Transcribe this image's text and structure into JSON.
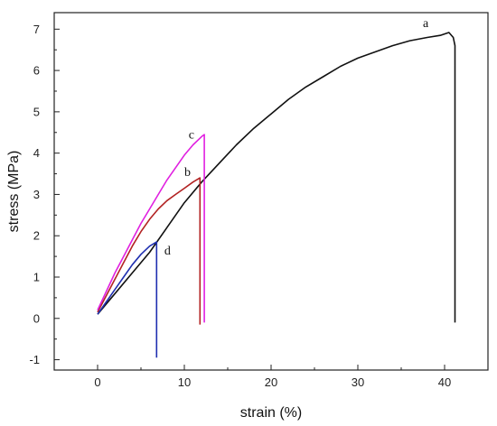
{
  "chart_data": {
    "type": "line",
    "title": "",
    "xlabel": "strain (%)",
    "ylabel": "stress (MPa)",
    "xlim": [
      -5,
      45
    ],
    "ylim": [
      -1.25,
      7.4
    ],
    "x_ticks": [
      0,
      10,
      20,
      30,
      40
    ],
    "y_ticks": [
      -1,
      0,
      1,
      2,
      3,
      4,
      5,
      6,
      7
    ],
    "grid": false,
    "legend": "none",
    "series": [
      {
        "color": "#111111",
        "label": "a",
        "points": [
          [
            0,
            0.1
          ],
          [
            2,
            0.6
          ],
          [
            4,
            1.1
          ],
          [
            6,
            1.6
          ],
          [
            8,
            2.2
          ],
          [
            10,
            2.8
          ],
          [
            12,
            3.3
          ],
          [
            14,
            3.75
          ],
          [
            16,
            4.2
          ],
          [
            18,
            4.6
          ],
          [
            20,
            4.95
          ],
          [
            22,
            5.3
          ],
          [
            24,
            5.6
          ],
          [
            26,
            5.85
          ],
          [
            28,
            6.1
          ],
          [
            30,
            6.3
          ],
          [
            32,
            6.45
          ],
          [
            34,
            6.6
          ],
          [
            36,
            6.72
          ],
          [
            38,
            6.8
          ],
          [
            39.5,
            6.85
          ],
          [
            40.5,
            6.92
          ],
          [
            41.0,
            6.8
          ],
          [
            41.2,
            6.6
          ],
          [
            41.2,
            -0.1
          ]
        ]
      },
      {
        "color": "#b22222",
        "label": "b",
        "points": [
          [
            0,
            0.15
          ],
          [
            1,
            0.55
          ],
          [
            2,
            0.95
          ],
          [
            3,
            1.35
          ],
          [
            4,
            1.75
          ],
          [
            5,
            2.1
          ],
          [
            6,
            2.4
          ],
          [
            7,
            2.65
          ],
          [
            8,
            2.85
          ],
          [
            9,
            3.0
          ],
          [
            10,
            3.15
          ],
          [
            11,
            3.3
          ],
          [
            11.8,
            3.4
          ],
          [
            11.8,
            -0.15
          ]
        ]
      },
      {
        "color": "#e020e0",
        "label": "c",
        "points": [
          [
            0,
            0.2
          ],
          [
            1,
            0.65
          ],
          [
            2,
            1.1
          ],
          [
            3,
            1.5
          ],
          [
            4,
            1.9
          ],
          [
            5,
            2.3
          ],
          [
            6,
            2.65
          ],
          [
            7,
            3.0
          ],
          [
            8,
            3.35
          ],
          [
            9,
            3.65
          ],
          [
            10,
            3.95
          ],
          [
            11,
            4.2
          ],
          [
            12,
            4.4
          ],
          [
            12.3,
            4.45
          ],
          [
            12.3,
            -0.1
          ]
        ]
      },
      {
        "color": "#1f2fb0",
        "label": "d",
        "points": [
          [
            0,
            0.1
          ],
          [
            1,
            0.4
          ],
          [
            2,
            0.7
          ],
          [
            3,
            1.0
          ],
          [
            4,
            1.3
          ],
          [
            5,
            1.55
          ],
          [
            6,
            1.75
          ],
          [
            6.8,
            1.85
          ],
          [
            6.8,
            -0.95
          ]
        ]
      }
    ],
    "annotations": [
      {
        "text": "a",
        "x": 37.5,
        "y": 7.05
      },
      {
        "text": "b",
        "x": 10.0,
        "y": 3.45
      },
      {
        "text": "c",
        "x": 10.5,
        "y": 4.35
      },
      {
        "text": "d",
        "x": 7.7,
        "y": 1.55
      }
    ]
  }
}
